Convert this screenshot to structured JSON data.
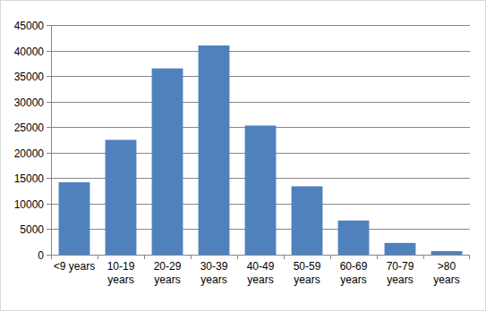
{
  "chart_data": {
    "type": "bar",
    "categories": [
      "<9 years",
      "10-19 years",
      "20-29 years",
      "30-39 years",
      "40-49 years",
      "50-59 years",
      "60-69 years",
      "70-79 years",
      ">80 years"
    ],
    "values": [
      14200,
      22500,
      36500,
      41000,
      25300,
      13400,
      6700,
      2300,
      700
    ],
    "color": "#4f81bd",
    "ylim": [
      0,
      45000
    ],
    "yticks": [
      0,
      5000,
      10000,
      15000,
      20000,
      25000,
      30000,
      35000,
      40000,
      45000
    ],
    "grid": true
  }
}
